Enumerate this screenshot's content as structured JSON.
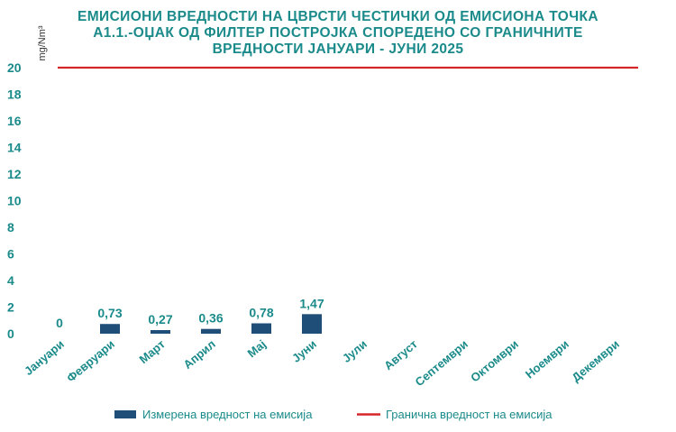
{
  "chart_data": {
    "type": "bar",
    "title_lines": [
      "ЕМИСИОНИ ВРЕДНОСТИ НА ЦВРСТИ ЧЕСТИЧКИ ОД ЕМИСИОНА ТОЧКА",
      "А1.1.-ОЏАК ОД ФИЛТЕР ПОСТРОЈКА СПОРЕДЕНО СО ГРАНИЧНИТЕ",
      "ВРЕДНОСТИ ЈАНУАРИ - ЈУНИ 2025"
    ],
    "ylabel": "mg/Nm³",
    "ylim": [
      0,
      20
    ],
    "yticks": [
      0,
      2,
      4,
      6,
      8,
      10,
      12,
      14,
      16,
      18,
      20
    ],
    "categories": [
      "Јануари",
      "Февруари",
      "Март",
      "Април",
      "Мај",
      "Јуни",
      "Јули",
      "Август",
      "Септември",
      "Октомври",
      "Ноември",
      "Декември"
    ],
    "series": [
      {
        "name": "Измерена вредност на емисија",
        "type": "bar",
        "color": "#1f4e79",
        "values": [
          0,
          0.73,
          0.27,
          0.36,
          0.78,
          1.47,
          null,
          null,
          null,
          null,
          null,
          null
        ],
        "labels": [
          "0",
          "0,73",
          "0,27",
          "0,36",
          "0,78",
          "1,47",
          "",
          "",
          "",
          "",
          "",
          ""
        ]
      },
      {
        "name": "Гранична вредност на емисија",
        "type": "line",
        "color": "#d62728",
        "value": 20
      }
    ],
    "grid": false,
    "legend_position": "bottom"
  }
}
